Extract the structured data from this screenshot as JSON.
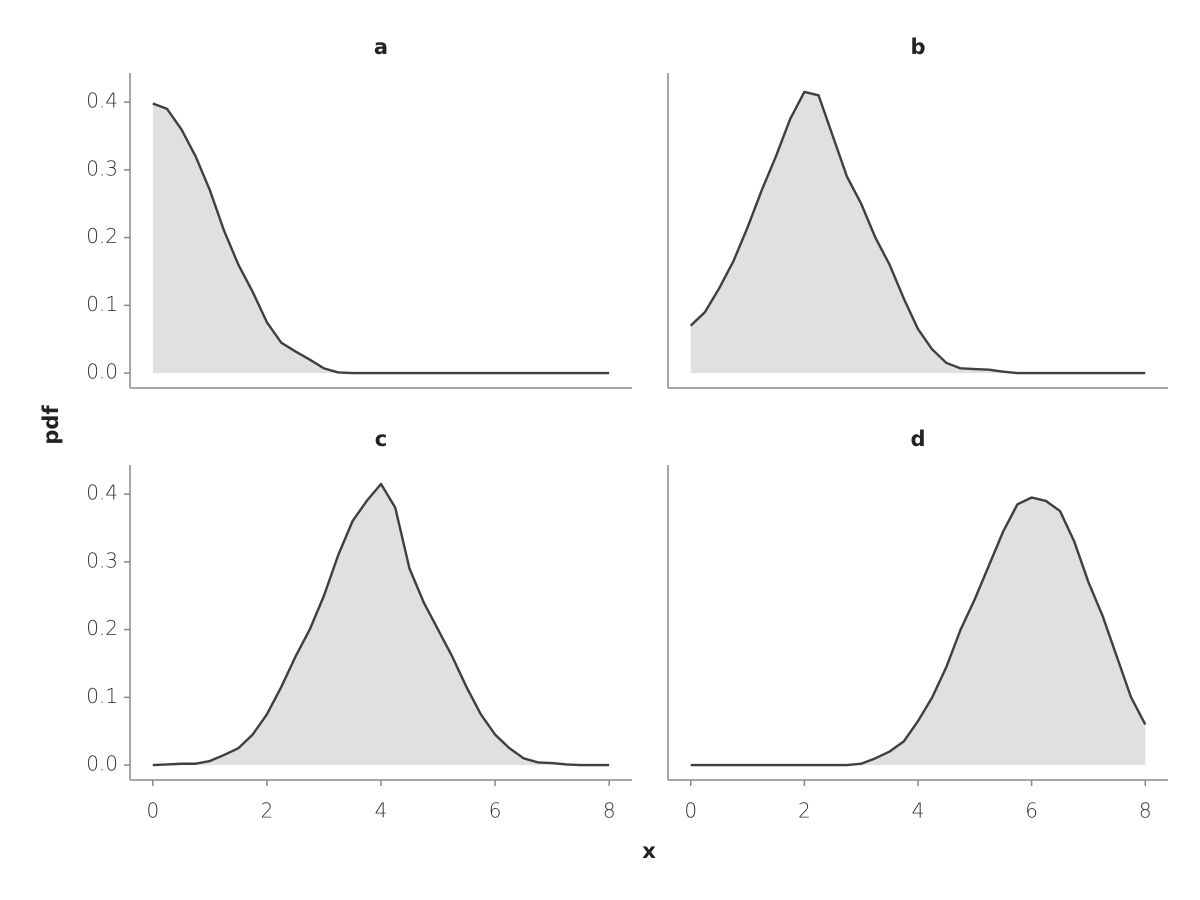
{
  "xlabel": "x",
  "ylabel": "pdf",
  "chart_data": [
    {
      "type": "area",
      "title": "a",
      "color": "#3f3f3f",
      "fill": "#e0e0e0",
      "x": [
        0,
        0.25,
        0.5,
        0.75,
        1,
        1.25,
        1.5,
        1.75,
        2,
        2.25,
        2.5,
        2.75,
        3,
        3.25,
        3.5,
        3.75,
        4,
        4.25,
        4.5,
        4.75,
        5,
        5.25,
        5.5,
        5.75,
        6,
        6.25,
        6.5,
        6.75,
        7,
        7.25,
        7.5,
        7.75,
        8
      ],
      "values": [
        0.398,
        0.39,
        0.36,
        0.32,
        0.27,
        0.21,
        0.16,
        0.12,
        0.075,
        0.045,
        0.032,
        0.02,
        0.007,
        0.001,
        0,
        0,
        0,
        0,
        0,
        0,
        0,
        0,
        0,
        0,
        0,
        0,
        0,
        0,
        0,
        0,
        0,
        0,
        0
      ],
      "xlim": [
        -0.4,
        8.4
      ],
      "ylim": [
        -0.022,
        0.443
      ],
      "yticks": [
        {
          "value": 0,
          "label": "0.0"
        },
        0.1,
        0.2,
        0.3,
        0.4
      ]
    },
    {
      "type": "area",
      "title": "b",
      "color": "#3f3f3f",
      "fill": "#e0e0e0",
      "x": [
        0,
        0.25,
        0.5,
        0.75,
        1,
        1.25,
        1.5,
        1.75,
        2,
        2.25,
        2.5,
        2.75,
        3,
        3.25,
        3.5,
        3.75,
        4,
        4.25,
        4.5,
        4.75,
        5,
        5.25,
        5.5,
        5.75,
        6,
        6.25,
        6.5,
        6.75,
        7,
        7.25,
        7.5,
        7.75,
        8
      ],
      "values": [
        0.07,
        0.09,
        0.125,
        0.165,
        0.215,
        0.27,
        0.32,
        0.375,
        0.415,
        0.41,
        0.35,
        0.29,
        0.25,
        0.2,
        0.16,
        0.11,
        0.065,
        0.035,
        0.015,
        0.007,
        0.006,
        0.005,
        0.002,
        0,
        0,
        0,
        0,
        0,
        0,
        0,
        0,
        0,
        0
      ],
      "xlim": [
        -0.4,
        8.4
      ],
      "ylim": [
        -0.022,
        0.443
      ]
    },
    {
      "type": "area",
      "title": "c",
      "color": "#3f3f3f",
      "fill": "#e0e0e0",
      "x": [
        0,
        0.25,
        0.5,
        0.75,
        1,
        1.25,
        1.5,
        1.75,
        2,
        2.25,
        2.5,
        2.75,
        3,
        3.25,
        3.5,
        3.75,
        4,
        4.25,
        4.5,
        4.75,
        5,
        5.25,
        5.5,
        5.75,
        6,
        6.25,
        6.5,
        6.75,
        7,
        7.25,
        7.5,
        7.75,
        8
      ],
      "values": [
        0,
        0.001,
        0.002,
        0.002,
        0.006,
        0.015,
        0.025,
        0.045,
        0.075,
        0.115,
        0.16,
        0.2,
        0.25,
        0.31,
        0.36,
        0.39,
        0.415,
        0.38,
        0.29,
        0.24,
        0.2,
        0.16,
        0.115,
        0.075,
        0.045,
        0.025,
        0.01,
        0.004,
        0.003,
        0.001,
        0,
        0,
        0
      ],
      "xlim": [
        -0.4,
        8.4
      ],
      "ylim": [
        -0.022,
        0.443
      ],
      "xticks": [
        0,
        2,
        4,
        6,
        8
      ],
      "yticks": [
        {
          "value": 0,
          "label": "0.0"
        },
        0.1,
        0.2,
        0.3,
        0.4
      ]
    },
    {
      "type": "area",
      "title": "d",
      "color": "#3f3f3f",
      "fill": "#e0e0e0",
      "x": [
        0,
        0.25,
        0.5,
        0.75,
        1,
        1.25,
        1.5,
        1.75,
        2,
        2.25,
        2.5,
        2.75,
        3,
        3.25,
        3.5,
        3.75,
        4,
        4.25,
        4.5,
        4.75,
        5,
        5.25,
        5.5,
        5.75,
        6,
        6.25,
        6.5,
        6.75,
        7,
        7.25,
        7.5,
        7.75,
        8
      ],
      "values": [
        0,
        0,
        0,
        0,
        0,
        0,
        0,
        0,
        0,
        0,
        0,
        0,
        0.002,
        0.01,
        0.02,
        0.035,
        0.065,
        0.1,
        0.145,
        0.2,
        0.245,
        0.295,
        0.345,
        0.385,
        0.395,
        0.39,
        0.375,
        0.33,
        0.27,
        0.22,
        0.16,
        0.1,
        0.06
      ],
      "xlim": [
        -0.4,
        8.4
      ],
      "ylim": [
        -0.022,
        0.443
      ],
      "xticks": [
        0,
        2,
        4,
        6,
        8
      ]
    }
  ]
}
